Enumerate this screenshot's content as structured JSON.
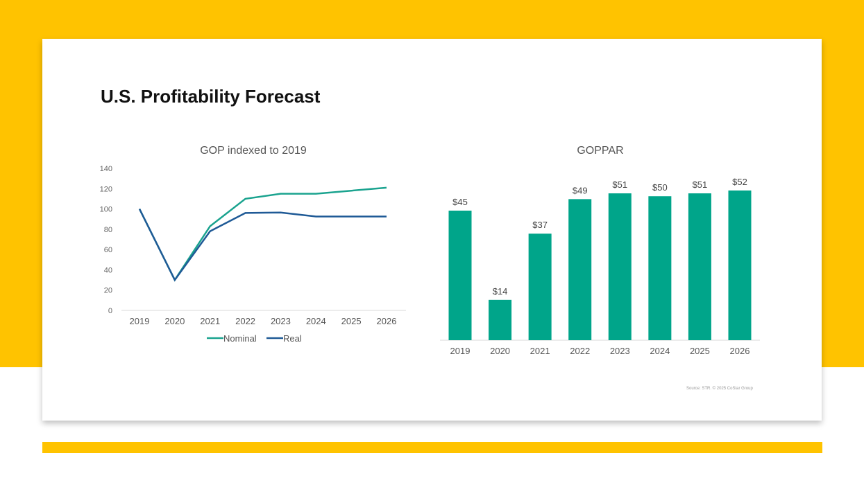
{
  "page": {
    "title": "U.S. Profitability Forecast",
    "source": "Source: STR. © 2025 CoStar Group"
  },
  "colors": {
    "background": "#FFC300",
    "nominal": "#1AA38F",
    "real": "#1F5A96",
    "bars": "#00A58A"
  },
  "chart_data": [
    {
      "type": "line",
      "title": "GOP indexed to 2019",
      "categories": [
        "2019",
        "2020",
        "2021",
        "2022",
        "2023",
        "2024",
        "2025",
        "2026"
      ],
      "ylim": [
        0,
        140
      ],
      "yticks": [
        0,
        20,
        40,
        60,
        80,
        100,
        120,
        140
      ],
      "grid": false,
      "legend": "bottom",
      "series": [
        {
          "name": "Nominal",
          "values": [
            100,
            30,
            83,
            110,
            115,
            115,
            118,
            121
          ]
        },
        {
          "name": "Real",
          "values": [
            100,
            30,
            78,
            96,
            96.5,
            92.5,
            92.5,
            92.5
          ]
        }
      ]
    },
    {
      "type": "bar",
      "title": "GOPPAR",
      "categories": [
        "2019",
        "2020",
        "2021",
        "2022",
        "2023",
        "2024",
        "2025",
        "2026"
      ],
      "values": [
        45,
        14,
        37,
        49,
        51,
        50,
        51,
        52
      ],
      "labels": [
        "$45",
        "$14",
        "$37",
        "$49",
        "$51",
        "$50",
        "$51",
        "$52"
      ],
      "ylim": [
        0,
        60
      ]
    }
  ]
}
